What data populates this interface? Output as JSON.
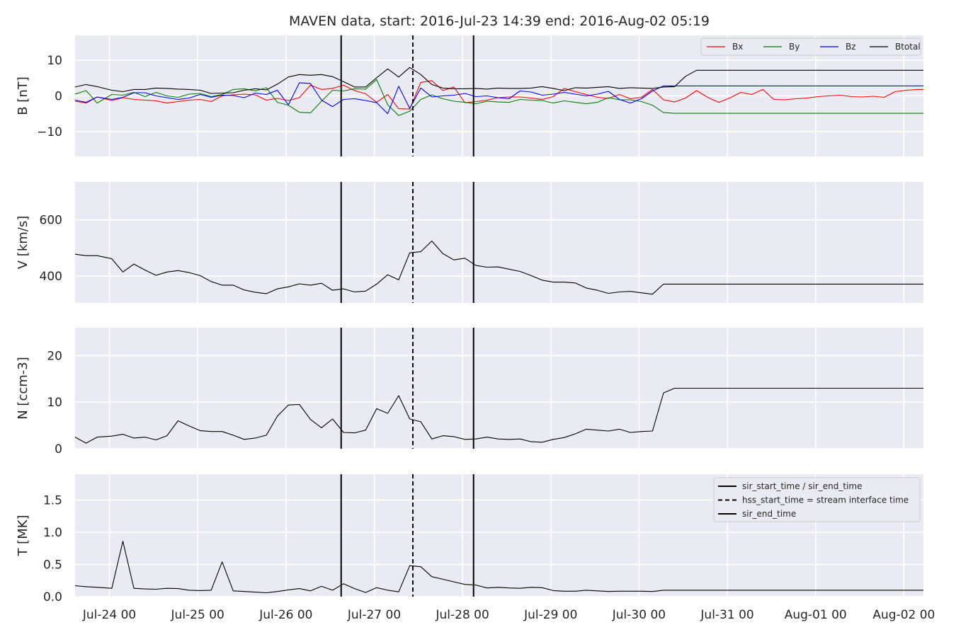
{
  "title": "MAVEN data, start: 2016-Jul-23 14:39  end: 2016-Aug-02 05:19",
  "colors": {
    "panel_bg": "#eaeaf2",
    "grid": "#ffffff",
    "Bx": "#ff0000",
    "By": "#008000",
    "Bz": "#0000ff",
    "Btotal": "#000000",
    "markers": "#000000"
  },
  "chart_data": {
    "type": "line",
    "shared_x_axis": {
      "type": "date",
      "range": [
        "2016-07-23 14:39",
        "2016-08-02 05:19"
      ],
      "tick_labels": [
        "Jul-24 00",
        "Jul-25 00",
        "Jul-26 00",
        "Jul-27 00",
        "Jul-28 00",
        "Jul-29 00",
        "Jul-30 00",
        "Jul-31 00",
        "Aug-01 00",
        "Aug-02 00"
      ],
      "tick_values": [
        "2016-07-24 00:00",
        "2016-07-25 00:00",
        "2016-07-26 00:00",
        "2016-07-27 00:00",
        "2016-07-28 00:00",
        "2016-07-29 00:00",
        "2016-07-30 00:00",
        "2016-07-31 00:00",
        "2016-08-01 00:00",
        "2016-08-02 00:00"
      ]
    },
    "x": [
      "2016-07-23 14:39",
      "2016-07-23 17:39",
      "2016-07-23 20:39",
      "2016-07-24 00:39",
      "2016-07-24 03:39",
      "2016-07-24 06:39",
      "2016-07-24 09:39",
      "2016-07-24 12:39",
      "2016-07-24 15:39",
      "2016-07-24 18:39",
      "2016-07-24 21:39",
      "2016-07-25 00:39",
      "2016-07-25 03:39",
      "2016-07-25 06:39",
      "2016-07-25 09:39",
      "2016-07-25 12:39",
      "2016-07-25 15:39",
      "2016-07-25 18:39",
      "2016-07-25 21:39",
      "2016-07-26 00:39",
      "2016-07-26 03:39",
      "2016-07-26 06:39",
      "2016-07-26 09:39",
      "2016-07-26 12:39",
      "2016-07-26 15:39",
      "2016-07-26 18:39",
      "2016-07-26 21:39",
      "2016-07-27 00:39",
      "2016-07-27 03:39",
      "2016-07-27 06:39",
      "2016-07-27 09:39",
      "2016-07-27 12:39",
      "2016-07-27 15:39",
      "2016-07-27 18:39",
      "2016-07-27 21:39",
      "2016-07-28 00:39",
      "2016-07-28 03:39",
      "2016-07-28 06:39",
      "2016-07-28 09:39",
      "2016-07-28 12:39",
      "2016-07-28 15:39",
      "2016-07-28 18:39",
      "2016-07-28 21:39",
      "2016-07-29 00:39",
      "2016-07-29 03:39",
      "2016-07-29 06:39",
      "2016-07-29 09:39",
      "2016-07-29 12:39",
      "2016-07-29 15:39",
      "2016-07-29 18:39",
      "2016-07-29 21:39",
      "2016-07-30 00:39",
      "2016-07-30 03:39",
      "2016-07-30 06:39",
      "2016-07-30 09:39",
      "2016-07-30 12:39",
      "2016-07-30 15:39",
      "2016-07-30 18:39",
      "2016-07-30 21:39",
      "2016-07-31 00:39",
      "2016-07-31 03:39",
      "2016-07-31 06:39",
      "2016-07-31 09:39",
      "2016-07-31 12:39",
      "2016-07-31 15:39",
      "2016-07-31 18:39",
      "2016-07-31 21:39",
      "2016-08-01 00:39",
      "2016-08-01 03:39",
      "2016-08-01 06:39",
      "2016-08-01 09:39",
      "2016-08-01 12:39",
      "2016-08-01 15:39",
      "2016-08-01 18:39",
      "2016-08-01 21:39",
      "2016-08-02 00:39",
      "2016-08-02 03:39",
      "2016-08-02 05:19"
    ],
    "vertical_markers": [
      {
        "time": "2016-07-26 15:00",
        "style": "solid"
      },
      {
        "time": "2016-07-27 10:30",
        "style": "dashed"
      },
      {
        "time": "2016-07-28 03:00",
        "style": "solid"
      }
    ],
    "panels": [
      {
        "ylabel": "B [nT]",
        "ylim": [
          -17,
          17
        ],
        "yticks": [
          -10,
          0,
          10
        ],
        "ytick_labels": [
          "−10",
          "0",
          "10"
        ],
        "legend": "top-right",
        "legend_labels": [
          "Bx",
          "By",
          "Bz",
          "Btotal"
        ],
        "series": [
          {
            "name": "Bx",
            "color": "#ff0000",
            "values": [
              -1.5,
              -2.0,
              -0.3,
              -1.3,
              -0.5,
              -1.0,
              -1.2,
              -1.4,
              -2.0,
              -1.6,
              -1.2,
              -1.0,
              -1.6,
              0.0,
              0.3,
              0.5,
              0.3,
              -1.2,
              -0.7,
              -1.3,
              -0.5,
              3.0,
              1.8,
              2.1,
              3.0,
              1.5,
              0.6,
              -1.8,
              0.4,
              -3.6,
              -3.7,
              3.8,
              4.3,
              1.5,
              2.5,
              -1.9,
              -1.6,
              -1.2,
              -0.5,
              -0.3,
              -0.3,
              -0.6,
              -1.0,
              -0.2,
              2.1,
              1.2,
              0.4,
              -0.4,
              -0.7,
              0.4,
              -0.8,
              -0.4,
              1.8,
              -1.1,
              -1.7,
              -0.6,
              1.5,
              -0.4,
              -1.8,
              -0.6,
              1.0,
              0.4,
              1.8,
              -1.0,
              -1.1,
              -0.8,
              -0.6,
              -0.2,
              0.0,
              0.2,
              -0.2,
              -0.3,
              -0.1,
              -0.4,
              1.2,
              1.6,
              1.8,
              1.8
            ]
          },
          {
            "name": "By",
            "color": "#008000",
            "values": [
              0.5,
              1.5,
              -2.0,
              0.4,
              0.2,
              1.0,
              -0.2,
              1.0,
              0.0,
              -0.4,
              0.5,
              0.7,
              -0.2,
              0.4,
              1.8,
              2.0,
              1.4,
              2.3,
              -1.8,
              -2.6,
              -4.6,
              -4.8,
              -1.5,
              1.6,
              1.4,
              2.0,
              1.9,
              4.6,
              -2.5,
              -5.5,
              -4.3,
              -1.0,
              0.3,
              -0.8,
              -1.5,
              -1.8,
              -2.2,
              -1.5,
              -1.7,
              -1.8,
              -1.0,
              -1.2,
              -1.3,
              -2.0,
              -1.4,
              -1.8,
              -2.2,
              -1.8,
              -0.5,
              -1.1,
              -1.1,
              -1.6,
              -2.6,
              -4.7,
              -4.9,
              -4.9,
              -4.9,
              -4.9,
              -4.9,
              -4.9,
              -4.9,
              -4.9,
              -4.9,
              -4.9,
              -4.9,
              -4.9,
              -4.9,
              -4.9,
              -4.9,
              -4.9,
              -4.9,
              -4.9,
              -4.9,
              -4.9,
              -4.9,
              -4.9,
              -4.9,
              -4.9
            ]
          },
          {
            "name": "Bz",
            "color": "#0000ff",
            "values": [
              -1.2,
              -1.8,
              -0.3,
              -1.0,
              -0.4,
              0.9,
              0.9,
              0.0,
              -0.5,
              -1.0,
              -0.6,
              0.4,
              -0.4,
              0.2,
              0.1,
              -0.5,
              0.8,
              0.4,
              1.6,
              -2.5,
              3.7,
              3.5,
              -1.2,
              -3.0,
              -1.0,
              -0.8,
              -1.3,
              -1.9,
              -5.0,
              2.7,
              -3.5,
              2.2,
              -0.3,
              0.0,
              0.2,
              0.7,
              -0.2,
              0.0,
              -0.5,
              -0.8,
              1.4,
              1.1,
              0.2,
              0.5,
              1.0,
              0.5,
              0.0,
              0.5,
              1.3,
              -1.0,
              -2.0,
              -0.8,
              1.4,
              2.8,
              2.8,
              2.8,
              2.8,
              2.8,
              2.8,
              2.8,
              2.8,
              2.8,
              2.8,
              2.8,
              2.8,
              2.8,
              2.8,
              2.8,
              2.8,
              2.8,
              2.8,
              2.8,
              2.8,
              2.8,
              2.8,
              2.8,
              2.8,
              2.8
            ]
          },
          {
            "name": "Btotal",
            "color": "#000000",
            "values": [
              2.5,
              3.2,
              2.6,
              1.6,
              1.2,
              1.8,
              1.8,
              2.2,
              2.1,
              1.9,
              1.8,
              1.6,
              0.7,
              0.8,
              0.9,
              1.6,
              2.0,
              1.7,
              3.3,
              5.3,
              6.0,
              5.8,
              6.0,
              5.4,
              4.0,
              2.5,
              2.5,
              5.1,
              7.6,
              5.3,
              8.0,
              6.0,
              3.2,
              2.2,
              2.0,
              2.0,
              2.1,
              1.9,
              2.2,
              2.1,
              2.1,
              2.2,
              2.6,
              2.1,
              1.5,
              2.3,
              2.2,
              2.4,
              2.6,
              2.1,
              2.3,
              2.2,
              2.1,
              2.5,
              2.6,
              5.5,
              7.2,
              7.2,
              7.2,
              7.2,
              7.2,
              7.2,
              7.2,
              7.2,
              7.2,
              7.2,
              7.2,
              7.2,
              7.2,
              7.2,
              7.2,
              7.2,
              7.2,
              7.2,
              7.2,
              7.2,
              7.2,
              7.2
            ]
          }
        ]
      },
      {
        "ylabel": "V [km/s]",
        "ylim": [
          305,
          735
        ],
        "yticks": [
          400,
          600
        ],
        "ytick_labels": [
          "400",
          "600"
        ],
        "series": [
          {
            "name": "V",
            "color": "#000000",
            "values": [
              478,
              473,
              473,
              462,
              415,
              443,
              422,
              403,
              415,
              420,
              413,
              402,
              381,
              368,
              368,
              351,
              343,
              338,
              355,
              362,
              373,
              368,
              375,
              350,
              355,
              344,
              347,
              372,
              405,
              387,
              483,
              487,
              525,
              480,
              458,
              464,
              438,
              432,
              433,
              425,
              417,
              402,
              386,
              379,
              379,
              376,
              358,
              350,
              339,
              344,
              346,
              341,
              336,
              372,
              372,
              372,
              372,
              372,
              372,
              372,
              372,
              372,
              372,
              372,
              372,
              372,
              372,
              372,
              372,
              372,
              372,
              372,
              372,
              372,
              372,
              372,
              372,
              372
            ]
          }
        ]
      },
      {
        "ylabel": "N [ccm-3]",
        "ylim": [
          0,
          26
        ],
        "yticks": [
          0,
          10,
          20
        ],
        "ytick_labels": [
          "0",
          "10",
          "20"
        ],
        "series": [
          {
            "name": "N",
            "color": "#000000",
            "values": [
              2.5,
              1.2,
              2.5,
              2.7,
              3.1,
              2.3,
              2.5,
              1.9,
              2.8,
              6.0,
              4.9,
              3.9,
              3.7,
              3.7,
              2.9,
              2.0,
              2.3,
              2.9,
              7.0,
              9.4,
              9.5,
              6.3,
              4.5,
              6.4,
              3.5,
              3.4,
              4.0,
              8.6,
              7.6,
              11.4,
              6.4,
              5.8,
              2.1,
              2.8,
              2.6,
              2.0,
              2.1,
              2.5,
              2.1,
              2.0,
              2.1,
              1.5,
              1.4,
              2.0,
              2.4,
              3.2,
              4.2,
              4.0,
              3.8,
              4.2,
              3.5,
              3.7,
              3.8,
              12.0,
              13.0,
              13.0,
              13.0,
              13.0,
              13.0,
              13.0,
              13.0,
              13.0,
              13.0,
              13.0,
              13.0,
              13.0,
              13.0,
              13.0,
              13.0,
              13.0,
              13.0,
              13.0,
              13.0,
              13.0,
              13.0,
              13.0,
              13.0,
              13.0
            ]
          }
        ]
      },
      {
        "ylabel": "T [MK]",
        "ylim": [
          0.0,
          1.9
        ],
        "yticks": [
          0.0,
          0.5,
          1.0,
          1.5
        ],
        "ytick_labels": [
          "0.0",
          "0.5",
          "1.0",
          "1.5"
        ],
        "legend": "top-right",
        "legend_labels": [
          "sir_start_time / sir_end_time",
          "hss_start_time = stream interface time",
          "sir_end_time"
        ],
        "series": [
          {
            "name": "T",
            "color": "#000000",
            "values": [
              0.17,
              0.155,
              0.145,
              0.13,
              0.86,
              0.13,
              0.12,
              0.115,
              0.13,
              0.125,
              0.1,
              0.095,
              0.1,
              0.54,
              0.09,
              0.08,
              0.07,
              0.06,
              0.08,
              0.105,
              0.125,
              0.09,
              0.16,
              0.1,
              0.2,
              0.125,
              0.065,
              0.14,
              0.1,
              0.075,
              0.48,
              0.465,
              0.31,
              0.27,
              0.23,
              0.19,
              0.18,
              0.135,
              0.145,
              0.135,
              0.13,
              0.145,
              0.14,
              0.095,
              0.085,
              0.085,
              0.1,
              0.09,
              0.08,
              0.085,
              0.085,
              0.085,
              0.08,
              0.1,
              0.1,
              0.1,
              0.1,
              0.1,
              0.1,
              0.1,
              0.1,
              0.1,
              0.1,
              0.1,
              0.1,
              0.1,
              0.1,
              0.1,
              0.1,
              0.1,
              0.1,
              0.1,
              0.1,
              0.1,
              0.1,
              0.1,
              0.1,
              0.1
            ]
          }
        ]
      }
    ]
  }
}
